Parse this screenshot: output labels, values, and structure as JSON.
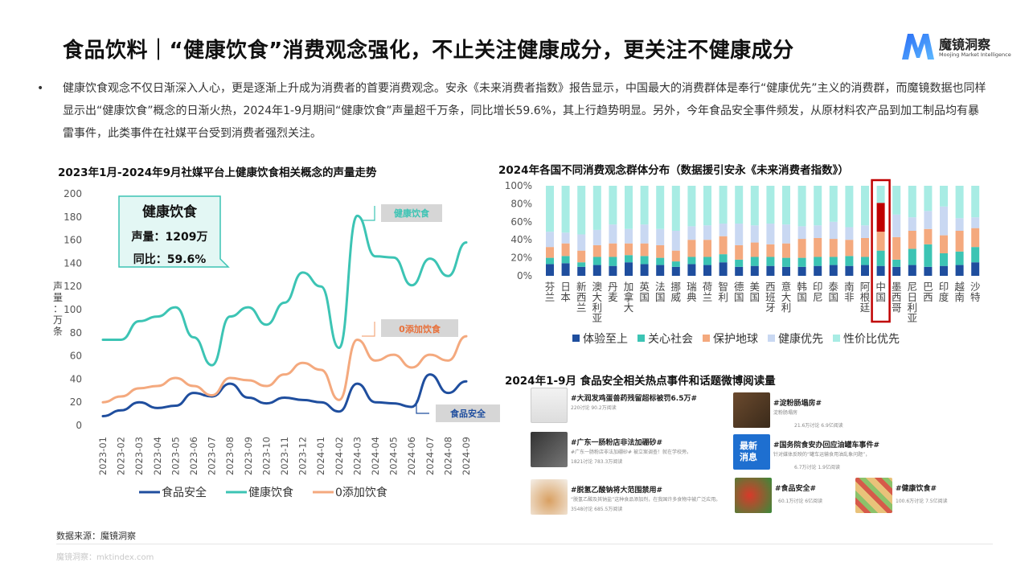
{
  "page": {
    "title": "食品饮料｜“健康饮食”消费观念强化，不止关注健康成分，更关注不健康成分",
    "logo_name": "魔镜洞察",
    "logo_sub": "Moojing Market Intelligence",
    "bullet": "•",
    "paragraph": "健康饮食观念不仅日渐深入人心，更是逐渐上升成为消费者的首要消费观念。安永《未来消费者指数》报告显示，中国最大的消费群体是奉行“健康优先”主义的消费群，而魔镜数据也同样显示出“健康饮食”概念的日渐火热，2024年1-9月期间“健康饮食”声量超千万条，同比增长59.6%，其上行趋势明显。另外，今年食品安全事件频发，从原材料农产品到加工制品均有暴雷事件，此类事件在社媒平台受到消费者强烈关注。",
    "footer_source": "数据来源：魔镜洞察",
    "footer_site": "魔镜洞察：mktindex.com"
  },
  "colors": {
    "teal": "#3cc4b4",
    "blue": "#1f4e9e",
    "orange": "#f4a97e",
    "light_blue": "#c9d8f2",
    "light_teal": "#a8ece4",
    "red": "#c00000"
  },
  "chart_data": [
    {
      "type": "line",
      "title": "2023年1月-2024年9月社媒平台上健康饮食相关概念的声量走势",
      "ylabel": "声量：万条",
      "ylim": [
        0,
        200
      ],
      "yticks": [
        0,
        20,
        40,
        60,
        80,
        100,
        120,
        140,
        160,
        180,
        200
      ],
      "x": [
        "2023-01",
        "2023-02",
        "2023-03",
        "2023-04",
        "2023-05",
        "2023-06",
        "2023-07",
        "2023-08",
        "2023-09",
        "2023-10",
        "2023-11",
        "2023-12",
        "2024-01",
        "2024-02",
        "2024-03",
        "2024-04",
        "2024-05",
        "2024-06",
        "2024-07",
        "2024-08",
        "2024-09"
      ],
      "series": [
        {
          "name": "食品安全",
          "color": "#1f4e9e",
          "values": [
            8,
            13,
            20,
            15,
            17,
            28,
            25,
            36,
            24,
            19,
            24,
            22,
            20,
            12,
            36,
            20,
            19,
            16,
            44,
            28,
            38
          ]
        },
        {
          "name": "健康饮食",
          "color": "#3cc4b4",
          "values": [
            74,
            74,
            90,
            94,
            102,
            76,
            52,
            94,
            102,
            87,
            106,
            132,
            120,
            67,
            181,
            146,
            145,
            121,
            144,
            129,
            158
          ]
        },
        {
          "name": "0添加饮食",
          "color": "#f4a97e",
          "values": [
            20,
            25,
            32,
            34,
            41,
            34,
            26,
            41,
            39,
            34,
            44,
            54,
            48,
            22,
            74,
            56,
            61,
            50,
            61,
            56,
            77
          ]
        }
      ],
      "callout": {
        "title": "健康饮食",
        "line1": "声量：1209万",
        "line2": "同比：59.6%"
      },
      "tags": [
        "健康饮食",
        "0添加饮食",
        "食品安全"
      ],
      "legend_position": "bottom"
    },
    {
      "type": "bar",
      "stacked": true,
      "title": "2024年各国不同消费观念群体分布（数据援引安永《未来消费者指数》）",
      "ylim": [
        0,
        100
      ],
      "yticks": [
        "0%",
        "20%",
        "40%",
        "60%",
        "80%",
        "100%"
      ],
      "categories": [
        "芬兰",
        "日本",
        "新西兰",
        "澳大利亚",
        "丹麦",
        "加拿大",
        "英国",
        "法国",
        "挪威",
        "瑞典",
        "荷兰",
        "智利",
        "德国",
        "美国",
        "西班牙",
        "意大利",
        "韩国",
        "印尼",
        "泰国",
        "南非",
        "阿根廷",
        "中国",
        "墨西哥",
        "尼日利亚",
        "巴西",
        "印度",
        "越南",
        "沙特"
      ],
      "highlight": "中国",
      "series": [
        {
          "name": "体验至上",
          "color": "#1f4e9e",
          "values": [
            13,
            14,
            10,
            12,
            11,
            15,
            13,
            12,
            10,
            13,
            12,
            15,
            10,
            11,
            11,
            10,
            10,
            11,
            12,
            11,
            12,
            11,
            10,
            12,
            10,
            11,
            12,
            15
          ]
        },
        {
          "name": "关心社会",
          "color": "#3cc4b4",
          "values": [
            7,
            8,
            5,
            9,
            10,
            8,
            9,
            8,
            6,
            8,
            9,
            9,
            8,
            10,
            10,
            10,
            10,
            10,
            9,
            11,
            9,
            17,
            8,
            18,
            25,
            14,
            15,
            17
          ]
        },
        {
          "name": "保护地球",
          "color": "#f4a97e",
          "values": [
            12,
            14,
            13,
            13,
            15,
            13,
            14,
            14,
            12,
            19,
            19,
            20,
            16,
            16,
            14,
            16,
            21,
            21,
            20,
            18,
            21,
            21,
            25,
            20,
            17,
            20,
            23,
            21
          ]
        },
        {
          "name": "健康优先",
          "color": "#c9d8f2",
          "values": [
            17,
            12,
            18,
            17,
            21,
            16,
            21,
            18,
            22,
            15,
            16,
            14,
            24,
            19,
            23,
            21,
            14,
            14,
            19,
            14,
            14,
            32,
            25,
            15,
            20,
            32,
            14,
            12
          ]
        },
        {
          "name": "性价比优先",
          "color": "#a8ece4",
          "values": [
            51,
            52,
            54,
            49,
            43,
            48,
            43,
            48,
            50,
            45,
            44,
            42,
            42,
            44,
            42,
            43,
            45,
            44,
            40,
            46,
            44,
            19,
            32,
            35,
            28,
            23,
            36,
            35
          ]
        }
      ],
      "legend_position": "bottom"
    }
  ],
  "news": {
    "title": "2024年1-9月 食品安全相关热点事件和话题微博阅读量",
    "items": [
      {
        "title": "#大润发鸡蛋兽药残留超标被罚6.5万#",
        "snippet": "",
        "stats": "220讨论 90.2万阅读"
      },
      {
        "title": "#淀粉肠塌房#",
        "snippet": "淀粉肠塌房",
        "stats": "21.6万讨论 6.9亿阅读"
      },
      {
        "title": "#广东一肠粉店非法加硼砂#",
        "snippet": "#广东一肠粉店非法加硼砂# 被立案调查！就在学校旁。",
        "stats": "1821讨论 783.3万阅读"
      },
      {
        "title": "#国务院食安办回应油罐车事件#",
        "snippet": "针对媒体反映的“罐车运输食用油乱象问题”，",
        "stats": "6.7万讨论 1.9亿阅读"
      },
      {
        "title": "#脱氢乙酸钠将大范围禁用#",
        "snippet": "“脱氢乙酸及其钠盐”这种食品添加剂，在我国许多食物中被广泛应用。",
        "stats": "3548讨论 685.5万阅读"
      },
      {
        "title": "#食品安全#",
        "snippet": "",
        "stats": "60.1万讨论 6亿阅读"
      },
      {
        "title": "#健康饮食#",
        "snippet": "",
        "stats": "100.6万讨论 7.5亿阅读"
      }
    ],
    "badge_lines": [
      "最新",
      "消息"
    ]
  }
}
